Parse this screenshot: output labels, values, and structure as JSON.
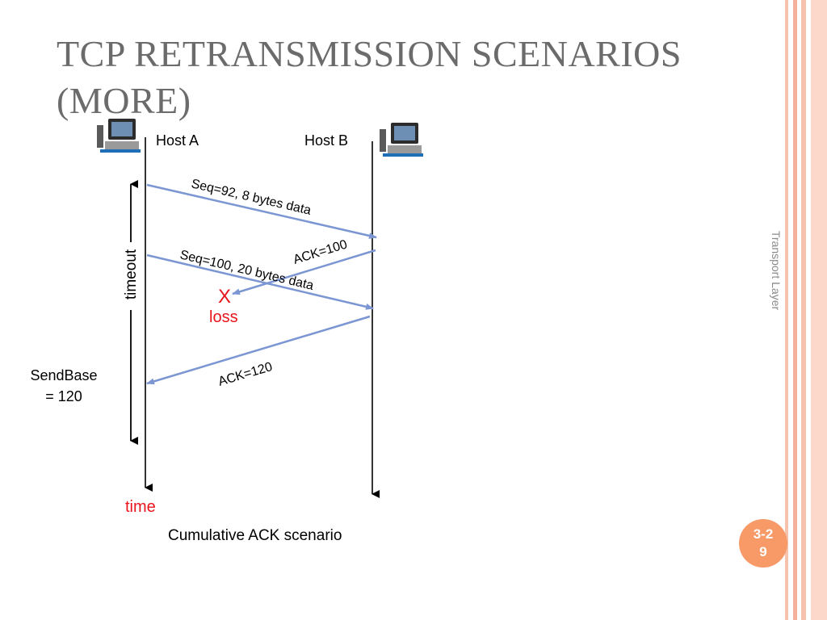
{
  "slide": {
    "title_line1": "TCP RETRANSMISSION SCENARIOS",
    "title_line2": "(MORE)",
    "side_label": "Transport Layer",
    "page_number": "3-29"
  },
  "diagram": {
    "host_a": "Host A",
    "host_b": "Host B",
    "host_icon": "computer-icon",
    "messages": [
      {
        "label": "Seq=92, 8 bytes data",
        "from": "Host A",
        "to": "Host B"
      },
      {
        "label": "ACK=100",
        "from": "Host B",
        "to": "Host A",
        "lost": true
      },
      {
        "label": "Seq=100, 20 bytes data",
        "from": "Host A",
        "to": "Host B"
      },
      {
        "label": "ACK=120",
        "from": "Host B",
        "to": "Host A"
      }
    ],
    "loss_mark": "X",
    "loss_label": "loss",
    "timeout_label": "timeout",
    "sendbase_line1": "SendBase",
    "sendbase_line2": "= 120",
    "time_label": "time",
    "caption": "Cumulative ACK scenario"
  },
  "colors": {
    "arrow": "#7b96d2",
    "accent_red": "#e8141c",
    "stripe": "#f4b8a0",
    "badge": "#f79a68",
    "title": "#6b6b6b"
  }
}
